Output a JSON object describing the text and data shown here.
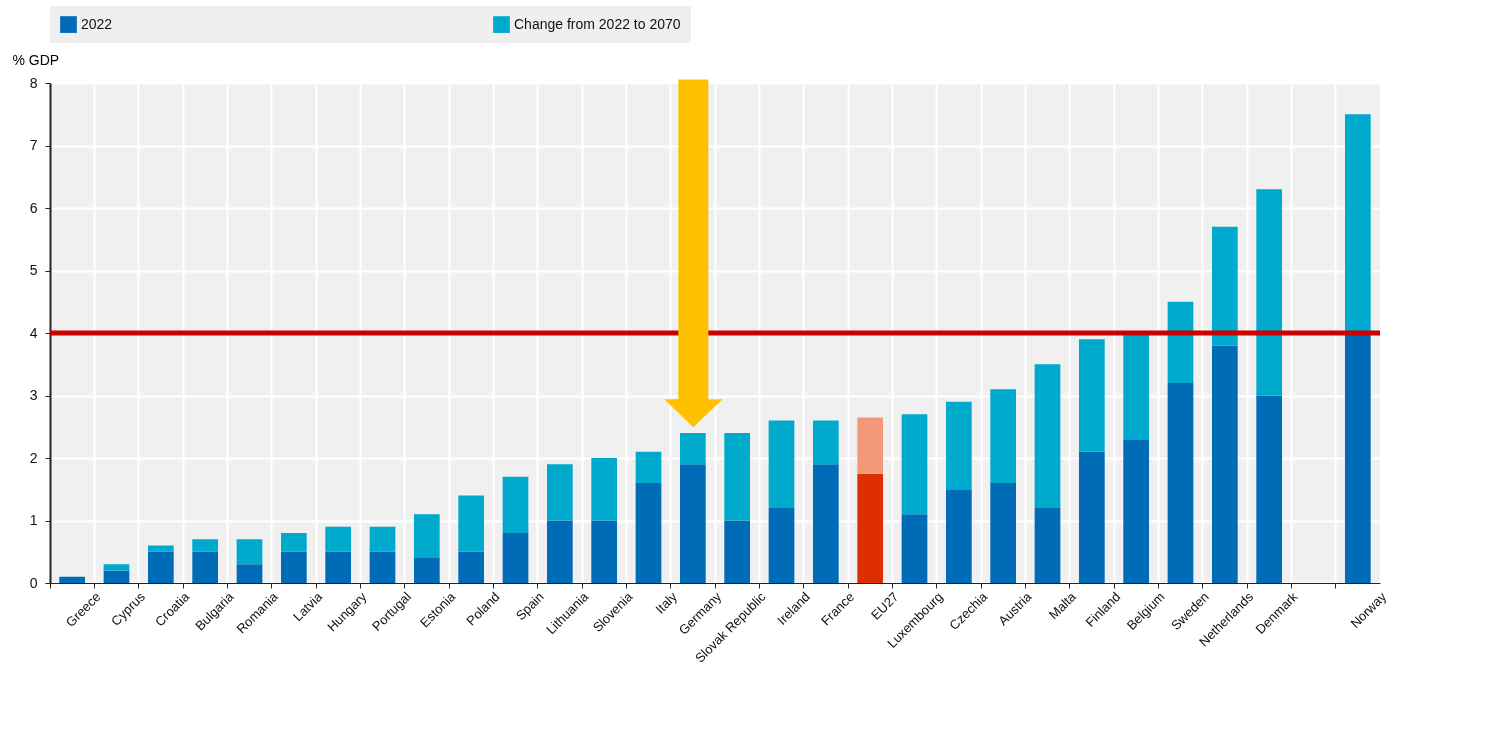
{
  "chart_data": {
    "type": "bar",
    "stacked": true,
    "ylabel": "% GDP",
    "ylim": [
      0,
      8
    ],
    "yticks": [
      0,
      1,
      2,
      3,
      4,
      5,
      6,
      7,
      8
    ],
    "grid": true,
    "legend": "top",
    "categories": [
      "Greece",
      "Cyprus",
      "Croatia",
      "Bulgaria",
      "Romania",
      "Latvia",
      "Hungary",
      "Portugal",
      "Estonia",
      "Poland",
      "Spain",
      "Lithuania",
      "Slovenia",
      "Italy",
      "Germany",
      "Slovak Republic",
      "Ireland",
      "France",
      "EU27",
      "Luxembourg",
      "Czechia",
      "Austria",
      "Malta",
      "Finland",
      "Belgium",
      "Sweden",
      "Netherlands",
      "Denmark",
      null,
      "Norway"
    ],
    "series": [
      {
        "name": "2022",
        "color": "#006bb6",
        "colors": [
          "#006bb6",
          "#006bb6",
          "#006bb6",
          "#006bb6",
          "#006bb6",
          "#006bb6",
          "#006bb6",
          "#006bb6",
          "#006bb6",
          "#006bb6",
          "#006bb6",
          "#006bb6",
          "#006bb6",
          "#006bb6",
          "#006bb6",
          "#006bb6",
          "#006bb6",
          "#006bb6",
          "#dc2e00",
          "#006bb6",
          "#006bb6",
          "#006bb6",
          "#006bb6",
          "#006bb6",
          "#006bb6",
          "#006bb6",
          "#006bb6",
          "#006bb6",
          "#006bb6",
          "#006bb6"
        ],
        "values": [
          0.1,
          0.2,
          0.5,
          0.5,
          0.3,
          0.5,
          0.5,
          0.5,
          0.4,
          0.5,
          0.8,
          1.0,
          1.0,
          1.6,
          1.9,
          1.0,
          1.2,
          1.9,
          1.75,
          1.1,
          1.5,
          1.6,
          1.2,
          2.1,
          2.3,
          3.2,
          3.8,
          3.0,
          null,
          4.0
        ]
      },
      {
        "name": "Change from 2022 to 2070",
        "color": "#00aacc",
        "colors": [
          "#00aacc",
          "#00aacc",
          "#00aacc",
          "#00aacc",
          "#00aacc",
          "#00aacc",
          "#00aacc",
          "#00aacc",
          "#00aacc",
          "#00aacc",
          "#00aacc",
          "#00aacc",
          "#00aacc",
          "#00aacc",
          "#00aacc",
          "#00aacc",
          "#00aacc",
          "#00aacc",
          "#f4987a",
          "#00aacc",
          "#00aacc",
          "#00aacc",
          "#00aacc",
          "#00aacc",
          "#00aacc",
          "#00aacc",
          "#00aacc",
          "#00aacc",
          "#00aacc",
          "#00aacc"
        ],
        "values": [
          null,
          0.1,
          0.1,
          0.2,
          0.4,
          0.3,
          0.4,
          0.4,
          0.7,
          0.9,
          0.9,
          0.9,
          1.0,
          0.5,
          0.5,
          1.4,
          1.4,
          0.7,
          0.9,
          1.6,
          1.4,
          1.5,
          2.3,
          1.8,
          1.7,
          1.3,
          1.9,
          3.3,
          null,
          3.5
        ]
      }
    ],
    "ref_lines": [
      {
        "axis": "y",
        "value": 4,
        "color": "#cc0000"
      }
    ]
  }
}
